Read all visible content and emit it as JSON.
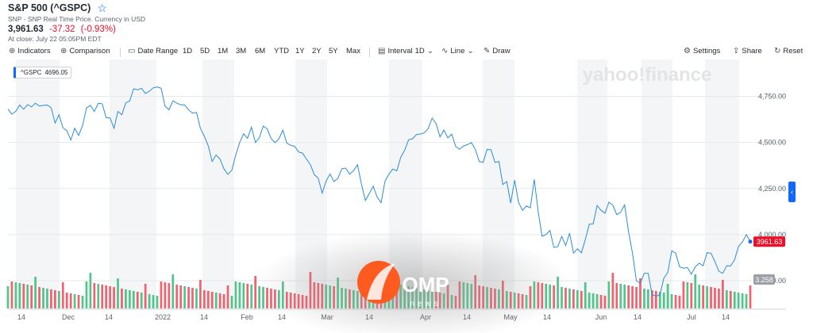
{
  "header": {
    "title": "S&P 500 (^GSPC)",
    "source": "SNP - SNP Real Time Price. Currency in USD",
    "price": "3,961.63",
    "change": "-37.32",
    "change_pct": "(-0.93%)",
    "close_time": "At close: July 22 05:05PM EDT"
  },
  "toolbar": {
    "indicators": "Indicators",
    "comparison": "Comparison",
    "date_range": "Date Range",
    "ranges": [
      "1D",
      "5D",
      "1M",
      "3M",
      "6M",
      "YTD",
      "1Y",
      "2Y",
      "5Y",
      "Max"
    ],
    "interval": "Interval",
    "interval_value": "1D",
    "line": "Line",
    "draw": "Draw",
    "settings": "Settings",
    "share": "Share",
    "reset": "Reset"
  },
  "chip": {
    "symbol": "^GSPC",
    "value": "4696.05"
  },
  "watermark": {
    "text": "yahoo!finance",
    "overlay_big": "OMP",
    "overlay_small": "news"
  },
  "chart_data": {
    "type": "line",
    "title": "S&P 500 (^GSPC)",
    "xlabel": "",
    "ylabel": "",
    "x_tick_labels": [
      "14",
      "Dec",
      "14",
      "2022",
      "14",
      "Feb",
      "14",
      "Mar",
      "14",
      "Apr",
      "14",
      "May",
      "14",
      "Jun",
      "14",
      "Jul",
      "14"
    ],
    "y_tick_labels": [
      "4,750.00",
      "4,500.00",
      "4,250.00",
      "4,000.00",
      "3,750.00"
    ],
    "ylim": [
      3690,
      4920
    ],
    "last_price_label": "3961.63",
    "volume_label": "3.258",
    "grid": true,
    "series": [
      {
        "values": [
          4681,
          4653,
          4669,
          4703,
          4680,
          4705,
          4693,
          4713,
          4697,
          4701,
          4703,
          4688,
          4605,
          4650,
          4580,
          4564,
          4513,
          4577,
          4538,
          4591,
          4687,
          4701,
          4668,
          4712,
          4710,
          4634,
          4633,
          4577,
          4668,
          4650,
          4715,
          4725,
          4791,
          4786,
          4794,
          4766,
          4778,
          4796,
          4801,
          4794,
          4697,
          4677,
          4726,
          4713,
          4704,
          4704,
          4676,
          4659,
          4663,
          4577,
          4533,
          4482,
          4397,
          4432,
          4410,
          4356,
          4327,
          4349,
          4432,
          4500,
          4547,
          4522,
          4583,
          4500,
          4525,
          4589,
          4574,
          4521,
          4499,
          4519,
          4567,
          4497,
          4484,
          4479,
          4448,
          4442,
          4410,
          4380,
          4325,
          4306,
          4225,
          4290,
          4329,
          4288,
          4306,
          4357,
          4361,
          4328,
          4347,
          4379,
          4275,
          4185,
          4223,
          4263,
          4204,
          4173,
          4289,
          4328,
          4356,
          4346,
          4419,
          4458,
          4514,
          4520,
          4543,
          4546,
          4552,
          4575,
          4632,
          4603,
          4530,
          4567,
          4525,
          4545,
          4478,
          4463,
          4481,
          4488,
          4499,
          4462,
          4396,
          4392,
          4463,
          4460,
          4392,
          4397,
          4272,
          4288,
          4171,
          4296,
          4175,
          4132,
          4155,
          4146,
          4300,
          4123,
          3991,
          4001,
          4023,
          3930,
          3935,
          3990,
          3941,
          4008,
          3900,
          3923,
          3901,
          3973,
          4057,
          4058,
          4158,
          4132,
          4116,
          4176,
          4160,
          4109,
          4121,
          4161,
          4018,
          3901,
          3750,
          3735,
          3790,
          3790,
          3675,
          3666,
          3674,
          3765,
          3795,
          3912,
          3900,
          3825,
          3818,
          3821,
          3785,
          3825,
          3845,
          3831,
          3902,
          3899,
          3854,
          3801,
          3790,
          3831,
          3830,
          3863,
          3936,
          3960,
          4000,
          3962
        ]
      }
    ]
  }
}
